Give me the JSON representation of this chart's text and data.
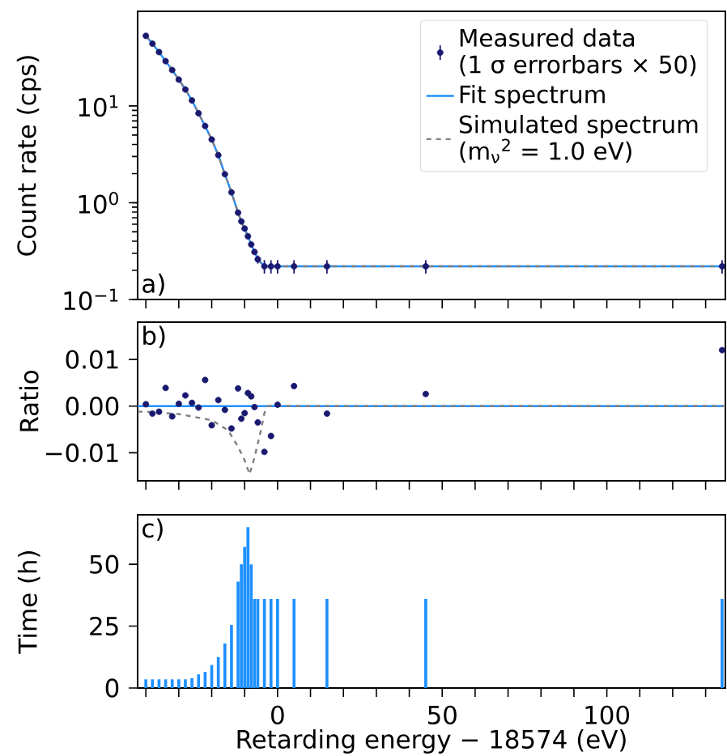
{
  "chart_data": [
    {
      "type": "scatter",
      "ylabel": "Count rate (cps)",
      "log": "y",
      "legend": "top right",
      "tick_labels": "y",
      "x": [
        -40,
        -38,
        -36,
        -34,
        -32,
        -30,
        -28,
        -26,
        -24,
        -22,
        -20,
        -18,
        -16,
        -14,
        -12,
        -11,
        -10,
        -9,
        -8,
        -7,
        -6,
        -4,
        -2,
        0,
        5,
        15,
        45,
        135
      ],
      "xlim": [
        -42.5,
        136
      ],
      "xticks": [
        {
          "value": -40,
          "label": null
        },
        {
          "value": -30,
          "label": null
        },
        {
          "value": -20,
          "label": null
        },
        {
          "value": -10,
          "label": null
        },
        0,
        {
          "value": 10,
          "label": null
        },
        {
          "value": 20,
          "label": null
        },
        {
          "value": 30,
          "label": null
        },
        {
          "value": 40,
          "label": null
        },
        50,
        {
          "value": 60,
          "label": null
        },
        {
          "value": 70,
          "label": null
        },
        {
          "value": 80,
          "label": null
        },
        {
          "value": 90,
          "label": null
        },
        100,
        {
          "value": 110,
          "label": null
        },
        {
          "value": 120,
          "label": null
        },
        {
          "value": 130,
          "label": null
        }
      ],
      "ylim": [
        0.1,
        95
      ],
      "yticks": [
        {
          "value": 0.1,
          "label": "10$^{−1}$"
        },
        {
          "value": 1,
          "label": "10$^{0}$"
        },
        {
          "value": 10,
          "label": "10$^{1}$"
        }
      ],
      "annotations": [
        "a)"
      ],
      "series": [
        {
          "name": "Measured data\n(1 σ errorbars × 50)",
          "type": "scatter",
          "marker": "circle",
          "color": "#191970",
          "values": [
            53,
            44,
            36,
            29,
            23.5,
            18.7,
            14.8,
            11.4,
            8.4,
            6.2,
            4.5,
            3.1,
            1.97,
            1.28,
            0.79,
            0.64,
            0.54,
            0.45,
            0.37,
            0.31,
            0.26,
            0.22,
            0.22,
            0.22,
            0.22,
            0.22,
            0.22,
            0.22
          ],
          "errors": [
            null,
            null,
            null,
            null,
            null,
            null,
            null,
            null,
            null,
            null,
            null,
            null,
            null,
            null,
            null,
            null,
            null,
            null,
            null,
            0.02,
            0.025,
            0.035,
            0.035,
            0.035,
            0.035,
            0.035,
            0.035,
            0.035
          ]
        },
        {
          "name": "Fit spectrum",
          "type": "line",
          "color": "#1e90ff",
          "values": [
            53,
            44,
            36,
            29,
            23.5,
            18.7,
            14.8,
            11.4,
            8.4,
            6.2,
            4.5,
            3.1,
            1.97,
            1.28,
            0.79,
            0.64,
            0.54,
            0.45,
            0.37,
            0.31,
            0.26,
            0.22,
            0.22,
            0.22,
            0.22,
            0.22,
            0.22,
            0.22
          ]
        },
        {
          "name": "Simulated spectrum\n(m$_{ν}$$^{2}$ = 1.0 eV)",
          "type": "line",
          "line_style": "dashed",
          "color": "#808080",
          "values": [
            53,
            44,
            36,
            29,
            23.5,
            18.7,
            14.8,
            11.4,
            8.4,
            6.2,
            4.5,
            3.1,
            1.97,
            1.28,
            0.79,
            0.64,
            0.54,
            0.45,
            0.37,
            0.31,
            0.26,
            0.22,
            0.22,
            0.22,
            0.22,
            0.22,
            0.22,
            0.22
          ]
        }
      ]
    },
    {
      "type": "scatter",
      "ylabel": "Ratio",
      "tick_labels": "y",
      "x": [
        -40,
        -38,
        -36,
        -34,
        -32,
        -30,
        -28,
        -26,
        -24,
        -22,
        -20,
        -18,
        -16,
        -14,
        -12,
        -11,
        -10,
        -9,
        -8,
        -7,
        -6,
        -4,
        -2,
        0,
        5,
        15,
        45,
        135
      ],
      "xlim": [
        -42.5,
        136
      ],
      "xticks": [
        {
          "value": -40,
          "label": null
        },
        {
          "value": -30,
          "label": null
        },
        {
          "value": -20,
          "label": null
        },
        {
          "value": -10,
          "label": null
        },
        0,
        {
          "value": 10,
          "label": null
        },
        {
          "value": 20,
          "label": null
        },
        {
          "value": 30,
          "label": null
        },
        {
          "value": 40,
          "label": null
        },
        50,
        {
          "value": 60,
          "label": null
        },
        {
          "value": 70,
          "label": null
        },
        {
          "value": 80,
          "label": null
        },
        {
          "value": 90,
          "label": null
        },
        100,
        {
          "value": 110,
          "label": null
        },
        {
          "value": 120,
          "label": null
        },
        {
          "value": 130,
          "label": null
        }
      ],
      "ylim": [
        -0.016,
        0.018
      ],
      "yticks": [
        {
          "value": -0.01,
          "label": "−0.01"
        },
        {
          "value": 0,
          "label": "0.00"
        },
        0.01
      ],
      "annotations": [
        "b)"
      ],
      "series": [
        {
          "type": "scatter",
          "marker": "circle",
          "color": "#191970",
          "values": [
            0.0004,
            -0.0016,
            -0.0012,
            0.0039,
            -0.0022,
            0.0005,
            0.0023,
            0.0007,
            -0.0003,
            0.0056,
            -0.0041,
            0.0013,
            -0.0008,
            -0.0048,
            0.0038,
            -0.0027,
            -0.0015,
            0.0028,
            0.0021,
            -0.0002,
            -0.0035,
            -0.0098,
            -0.0064,
            0.0003,
            0.0043,
            -0.0016,
            0.0026,
            0.012
          ]
        },
        {
          "type": "line",
          "color": "#1e90ff",
          "x": [
            -42.5,
            136
          ],
          "values": [
            0,
            0
          ]
        },
        {
          "type": "line",
          "line_style": "dashed",
          "color": "#808080",
          "x": [
            -42.5,
            -40,
            -30,
            -20,
            -15,
            -12,
            -10,
            -8.5,
            -7,
            -5,
            -4,
            -3,
            0,
            136
          ],
          "values": [
            -0.0012,
            -0.0012,
            -0.0017,
            -0.003,
            -0.0052,
            -0.0087,
            -0.0116,
            -0.0146,
            -0.011,
            -0.005,
            -0.0015,
            0,
            0,
            0
          ]
        }
      ]
    },
    {
      "type": "bar",
      "ylabel": "Time (h)",
      "xlabel": "Retarding energy − 18574 (eV)",
      "x": [
        -40,
        -38,
        -36,
        -34,
        -32,
        -30,
        -28,
        -26,
        -24,
        -22,
        -20,
        -18,
        -16,
        -14,
        -12,
        -11,
        -10,
        -9,
        -8,
        -7,
        -6,
        -4,
        -2,
        0,
        5,
        15,
        45,
        135
      ],
      "xlim": [
        -42.5,
        136
      ],
      "xticks": [
        {
          "value": -40,
          "label": null
        },
        {
          "value": -30,
          "label": null
        },
        {
          "value": -20,
          "label": null
        },
        {
          "value": -10,
          "label": null
        },
        0,
        {
          "value": 10,
          "label": null
        },
        {
          "value": 20,
          "label": null
        },
        {
          "value": 30,
          "label": null
        },
        {
          "value": 40,
          "label": null
        },
        50,
        {
          "value": 60,
          "label": null
        },
        {
          "value": 70,
          "label": null
        },
        {
          "value": 80,
          "label": null
        },
        {
          "value": 90,
          "label": null
        },
        100,
        {
          "value": 110,
          "label": null
        },
        {
          "value": 120,
          "label": null
        },
        {
          "value": 130,
          "label": null
        }
      ],
      "ylim": [
        0,
        70
      ],
      "yticks": [
        0,
        25,
        50
      ],
      "annotations": [
        "c)"
      ],
      "series": [
        {
          "color": "#1e90ff",
          "values": [
            3.5,
            3.5,
            3.5,
            3.5,
            3.5,
            3.5,
            3.5,
            4,
            5.5,
            6.5,
            9.3,
            12.5,
            18,
            25.5,
            43,
            50,
            57,
            65,
            50,
            36,
            36,
            36,
            36,
            36,
            36,
            36,
            36,
            36
          ]
        }
      ]
    }
  ]
}
